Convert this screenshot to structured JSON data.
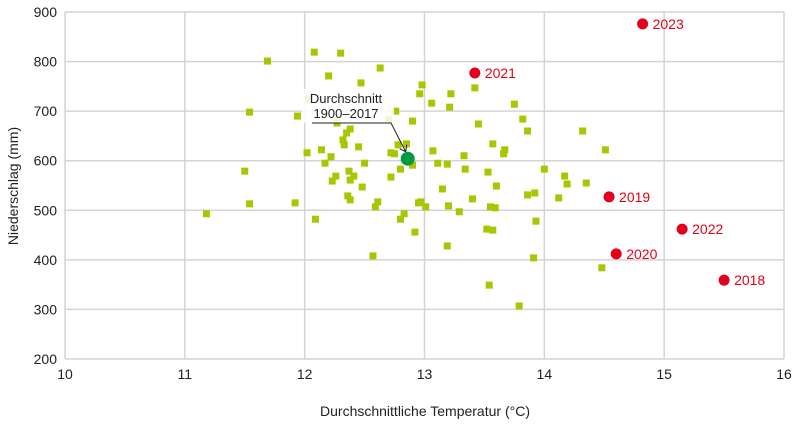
{
  "chart_data": {
    "type": "scatter",
    "title": "",
    "xlabel": "Durchschnittliche Temperatur (°C)",
    "ylabel": "Niederschlag (mm)",
    "xlim": [
      10,
      16
    ],
    "ylim": [
      200,
      900
    ],
    "xticks": [
      "10",
      "11",
      "12",
      "13",
      "14",
      "15",
      "16"
    ],
    "yticks": [
      "200",
      "300",
      "400",
      "500",
      "600",
      "700",
      "800",
      "900"
    ],
    "grid": true,
    "colors": {
      "years": "#a8c700",
      "highlight": "#e2001a",
      "average": "#009a44",
      "grid": "#d4d4d4"
    },
    "points": [
      [
        11.18,
        493
      ],
      [
        11.54,
        513
      ],
      [
        11.5,
        579
      ],
      [
        11.54,
        698
      ],
      [
        11.69,
        801
      ],
      [
        11.92,
        515
      ],
      [
        11.94,
        690
      ],
      [
        12.02,
        616
      ],
      [
        12.03,
        724
      ],
      [
        12.08,
        819
      ],
      [
        12.09,
        482
      ],
      [
        12.14,
        622
      ],
      [
        12.17,
        595
      ],
      [
        12.2,
        771
      ],
      [
        12.22,
        608
      ],
      [
        12.23,
        559
      ],
      [
        12.26,
        569
      ],
      [
        12.27,
        676
      ],
      [
        12.3,
        817
      ],
      [
        12.32,
        642
      ],
      [
        12.33,
        632
      ],
      [
        12.35,
        656
      ],
      [
        12.36,
        529
      ],
      [
        12.37,
        579
      ],
      [
        12.38,
        664
      ],
      [
        12.38,
        561
      ],
      [
        12.38,
        521
      ],
      [
        12.41,
        569
      ],
      [
        12.45,
        628
      ],
      [
        12.47,
        757
      ],
      [
        12.48,
        547
      ],
      [
        12.5,
        595
      ],
      [
        12.57,
        408
      ],
      [
        12.59,
        507
      ],
      [
        12.61,
        517
      ],
      [
        12.63,
        787
      ],
      [
        12.7,
        684
      ],
      [
        12.72,
        616
      ],
      [
        12.72,
        567
      ],
      [
        12.75,
        614
      ],
      [
        12.76,
        700
      ],
      [
        12.78,
        632
      ],
      [
        12.8,
        583
      ],
      [
        12.8,
        482
      ],
      [
        12.83,
        493
      ],
      [
        12.85,
        634
      ],
      [
        12.9,
        591
      ],
      [
        12.9,
        680
      ],
      [
        12.92,
        456
      ],
      [
        12.95,
        515
      ],
      [
        12.96,
        735
      ],
      [
        12.97,
        517
      ],
      [
        12.98,
        753
      ],
      [
        13.01,
        507
      ],
      [
        13.06,
        716
      ],
      [
        13.07,
        620
      ],
      [
        13.11,
        595
      ],
      [
        13.15,
        543
      ],
      [
        13.19,
        593
      ],
      [
        13.19,
        428
      ],
      [
        13.2,
        509
      ],
      [
        13.21,
        708
      ],
      [
        13.22,
        735
      ],
      [
        13.29,
        497
      ],
      [
        13.33,
        610
      ],
      [
        13.34,
        583
      ],
      [
        13.4,
        523
      ],
      [
        13.45,
        674
      ],
      [
        13.52,
        462
      ],
      [
        13.53,
        577
      ],
      [
        13.54,
        349
      ],
      [
        13.55,
        507
      ],
      [
        13.57,
        634
      ],
      [
        13.57,
        460
      ],
      [
        13.59,
        505
      ],
      [
        13.6,
        549
      ],
      [
        13.66,
        614
      ],
      [
        13.67,
        622
      ],
      [
        13.75,
        714
      ],
      [
        13.79,
        307
      ],
      [
        13.82,
        684
      ],
      [
        13.86,
        531
      ],
      [
        13.86,
        660
      ],
      [
        13.91,
        404
      ],
      [
        13.92,
        535
      ],
      [
        13.93,
        478
      ],
      [
        14.0,
        583
      ],
      [
        14.12,
        525
      ],
      [
        14.17,
        569
      ],
      [
        14.19,
        553
      ],
      [
        14.32,
        660
      ],
      [
        14.35,
        555
      ],
      [
        14.48,
        384
      ],
      [
        14.51,
        622
      ],
      [
        13.42,
        747
      ]
    ],
    "highlighted_years": [
      {
        "label": "2023",
        "x": 14.82,
        "y": 876
      },
      {
        "label": "2021",
        "x": 13.42,
        "y": 777
      },
      {
        "label": "2019",
        "x": 14.54,
        "y": 527
      },
      {
        "label": "2022",
        "x": 15.15,
        "y": 462
      },
      {
        "label": "2020",
        "x": 14.6,
        "y": 412
      },
      {
        "label": "2018",
        "x": 15.5,
        "y": 359
      }
    ],
    "average": {
      "label_line1": "Durchschnitt",
      "label_line2": "1900–2017",
      "x": 12.86,
      "y": 604
    }
  }
}
